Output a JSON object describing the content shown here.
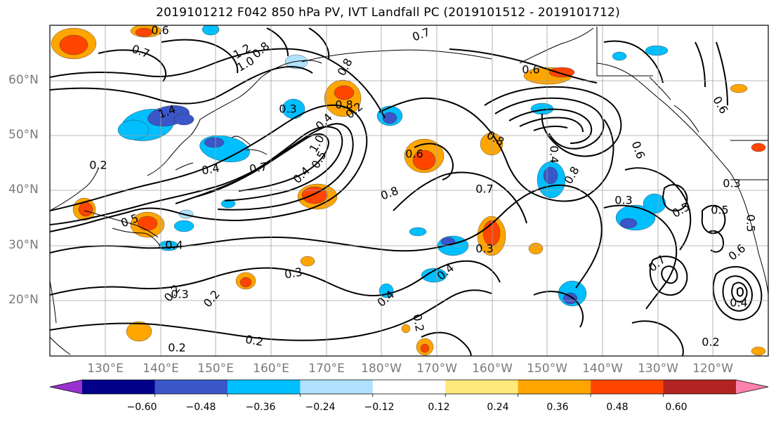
{
  "title": "2019101212 F042 850 hPa PV, IVT Landfall PC (2019101512 - 2019101712)",
  "lat_labels": [
    "60°N",
    "50°N",
    "40°N",
    "30°N",
    "20°N"
  ],
  "lon_labels": [
    "130°E",
    "140°E",
    "150°E",
    "160°E",
    "170°E",
    "180°W",
    "170°W",
    "160°W",
    "150°W",
    "140°W",
    "130°W",
    "120°W"
  ],
  "contour_labels": [
    "0.6",
    "0.7",
    "1.2",
    "1.0",
    "0.8",
    "0.7",
    "0.8",
    "0.4",
    "0.3",
    "0.4",
    "0.6",
    "0.8",
    "0.2",
    "0.8",
    "1.4",
    "0.6",
    "0.7",
    "0.4",
    "0.5",
    "0.4",
    "0.5",
    "1.0",
    "0.8",
    "0.7",
    "0.4",
    "0.8",
    "0.6",
    "0.3",
    "0.5",
    "0.7",
    "0.3",
    "0.5",
    "0.2",
    "0.6",
    "0.4",
    "0.5",
    "0.3",
    "0.2",
    "0.3",
    "0.2",
    "0.4",
    "0.2",
    "0.2",
    "0.2",
    "0.6",
    "0.2",
    "0.3",
    "0.4"
  ],
  "colorbar": {
    "ticks": [
      "−0.60",
      "−0.48",
      "−0.36",
      "−0.24",
      "−0.12",
      "0.12",
      "0.24",
      "0.36",
      "0.48",
      "0.60"
    ],
    "colors": [
      "#9a32cd",
      "#00008b",
      "#3a56c8",
      "#00bfff",
      "#b0e2ff",
      "#ffffff",
      "#ffe87c",
      "#ffa500",
      "#ff4500",
      "#b22222",
      "#ff82ab"
    ]
  },
  "colors": {
    "neg_strong": "#3a56c8",
    "neg_mid": "#00bfff",
    "neg_light": "#b0e2ff",
    "pos_light": "#ffe87c",
    "pos_mid": "#ffa500",
    "pos_strong": "#ff4500",
    "grid": "#a0a0a0",
    "contour": "#000000"
  }
}
